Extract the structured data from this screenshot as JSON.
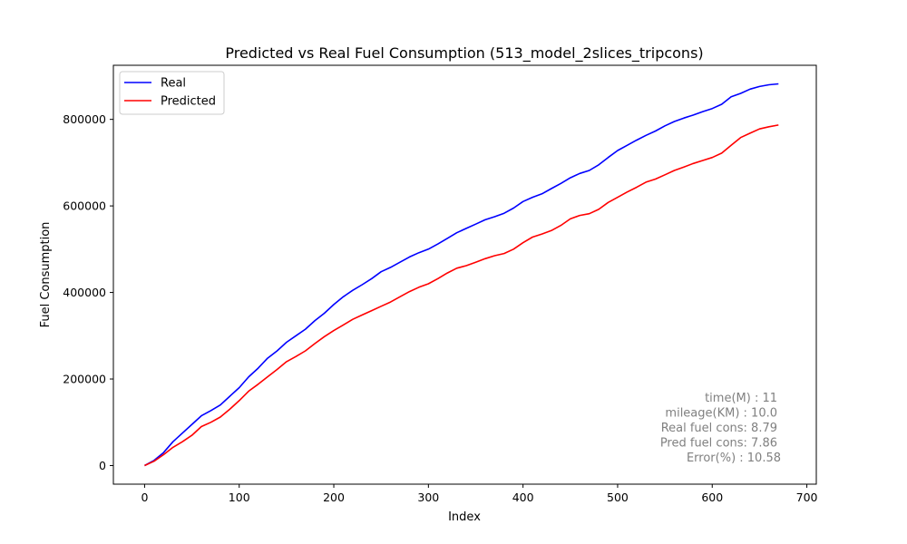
{
  "chart_data": {
    "type": "line",
    "title": "Predicted vs Real Fuel Consumption (513_model_2slices_tripcons)",
    "xlabel": "Index",
    "ylabel": "Fuel Consumption",
    "xlim": [
      -33,
      710
    ],
    "ylim": [
      -43000,
      925000
    ],
    "x_ticks": [
      0,
      100,
      200,
      300,
      400,
      500,
      600,
      700
    ],
    "x_tick_labels": [
      "0",
      "100",
      "200",
      "300",
      "400",
      "500",
      "600",
      "700"
    ],
    "y_ticks": [
      0,
      200000,
      400000,
      600000,
      800000
    ],
    "y_tick_labels": [
      "0",
      "200000",
      "400000",
      "600000",
      "800000"
    ],
    "grid": false,
    "legend_position": "top-left",
    "series": [
      {
        "name": "Real",
        "color": "#0000ff",
        "x": [
          0,
          10,
          20,
          30,
          40,
          50,
          60,
          70,
          80,
          90,
          100,
          110,
          120,
          130,
          140,
          150,
          160,
          170,
          180,
          190,
          200,
          210,
          220,
          230,
          240,
          250,
          260,
          270,
          280,
          290,
          300,
          310,
          320,
          330,
          340,
          350,
          360,
          370,
          380,
          390,
          400,
          410,
          420,
          430,
          440,
          450,
          460,
          470,
          480,
          490,
          500,
          510,
          520,
          530,
          540,
          550,
          560,
          570,
          580,
          590,
          600,
          610,
          620,
          630,
          640,
          650,
          660,
          670
        ],
        "values": [
          0,
          12000,
          30000,
          55000,
          75000,
          95000,
          115000,
          127000,
          140000,
          160000,
          180000,
          205000,
          225000,
          248000,
          265000,
          285000,
          300000,
          315000,
          335000,
          352000,
          372000,
          390000,
          405000,
          418000,
          432000,
          448000,
          458000,
          470000,
          482000,
          492000,
          500000,
          512000,
          525000,
          538000,
          548000,
          558000,
          568000,
          575000,
          583000,
          595000,
          610000,
          620000,
          628000,
          640000,
          652000,
          665000,
          675000,
          682000,
          695000,
          712000,
          728000,
          740000,
          752000,
          763000,
          773000,
          785000,
          795000,
          803000,
          810000,
          818000,
          825000,
          835000,
          852000,
          860000,
          870000,
          876000,
          880000,
          882000
        ]
      },
      {
        "name": "Predicted",
        "color": "#ff0000",
        "x": [
          0,
          10,
          20,
          30,
          40,
          50,
          60,
          70,
          80,
          90,
          100,
          110,
          120,
          130,
          140,
          150,
          160,
          170,
          180,
          190,
          200,
          210,
          220,
          230,
          240,
          250,
          260,
          270,
          280,
          290,
          300,
          310,
          320,
          330,
          340,
          350,
          360,
          370,
          380,
          390,
          400,
          410,
          420,
          430,
          440,
          450,
          460,
          470,
          480,
          490,
          500,
          510,
          520,
          530,
          540,
          550,
          560,
          570,
          580,
          590,
          600,
          610,
          620,
          630,
          640,
          650,
          660,
          670
        ],
        "values": [
          0,
          10000,
          25000,
          42000,
          55000,
          70000,
          90000,
          100000,
          112000,
          130000,
          150000,
          172000,
          188000,
          205000,
          222000,
          240000,
          252000,
          265000,
          282000,
          298000,
          312000,
          325000,
          338000,
          348000,
          358000,
          368000,
          378000,
          390000,
          402000,
          412000,
          420000,
          432000,
          445000,
          456000,
          462000,
          470000,
          478000,
          485000,
          490000,
          500000,
          515000,
          528000,
          535000,
          543000,
          555000,
          570000,
          578000,
          582000,
          592000,
          608000,
          620000,
          632000,
          643000,
          655000,
          662000,
          672000,
          682000,
          690000,
          698000,
          705000,
          712000,
          722000,
          740000,
          758000,
          768000,
          778000,
          783000,
          787000
        ]
      }
    ],
    "annotations": [
      "time(M) : 11",
      "mileage(KM) : 10.0",
      "Real fuel cons: 8.79",
      "Pred fuel cons: 7.86",
      "Error(%) : 10.58"
    ],
    "annotation_color": "#808080"
  }
}
